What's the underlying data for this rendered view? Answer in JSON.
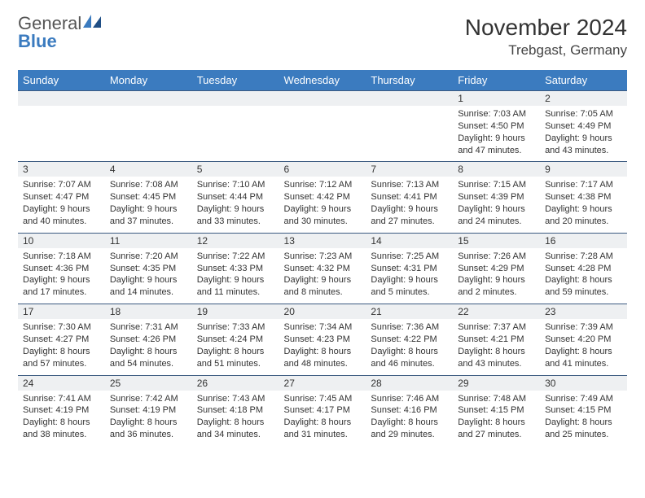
{
  "brand": {
    "name1": "General",
    "name2": "Blue"
  },
  "title": "November 2024",
  "location": "Trebgast, Germany",
  "colors": {
    "header_bg": "#3b7bbf",
    "header_text": "#ffffff",
    "daynum_bg": "#eef0f2",
    "border": "#3b5a80",
    "body_text": "#333333",
    "brand_gray": "#555555",
    "brand_blue": "#3b7bbf"
  },
  "fonts": {
    "title_size": 28,
    "location_size": 17,
    "header_size": 13,
    "daynum_size": 12,
    "cell_size": 11
  },
  "daysOfWeek": [
    "Sunday",
    "Monday",
    "Tuesday",
    "Wednesday",
    "Thursday",
    "Friday",
    "Saturday"
  ],
  "weeks": [
    [
      null,
      null,
      null,
      null,
      null,
      {
        "n": "1",
        "sunrise": "7:03 AM",
        "sunset": "4:50 PM",
        "daylight": "9 hours and 47 minutes."
      },
      {
        "n": "2",
        "sunrise": "7:05 AM",
        "sunset": "4:49 PM",
        "daylight": "9 hours and 43 minutes."
      }
    ],
    [
      {
        "n": "3",
        "sunrise": "7:07 AM",
        "sunset": "4:47 PM",
        "daylight": "9 hours and 40 minutes."
      },
      {
        "n": "4",
        "sunrise": "7:08 AM",
        "sunset": "4:45 PM",
        "daylight": "9 hours and 37 minutes."
      },
      {
        "n": "5",
        "sunrise": "7:10 AM",
        "sunset": "4:44 PM",
        "daylight": "9 hours and 33 minutes."
      },
      {
        "n": "6",
        "sunrise": "7:12 AM",
        "sunset": "4:42 PM",
        "daylight": "9 hours and 30 minutes."
      },
      {
        "n": "7",
        "sunrise": "7:13 AM",
        "sunset": "4:41 PM",
        "daylight": "9 hours and 27 minutes."
      },
      {
        "n": "8",
        "sunrise": "7:15 AM",
        "sunset": "4:39 PM",
        "daylight": "9 hours and 24 minutes."
      },
      {
        "n": "9",
        "sunrise": "7:17 AM",
        "sunset": "4:38 PM",
        "daylight": "9 hours and 20 minutes."
      }
    ],
    [
      {
        "n": "10",
        "sunrise": "7:18 AM",
        "sunset": "4:36 PM",
        "daylight": "9 hours and 17 minutes."
      },
      {
        "n": "11",
        "sunrise": "7:20 AM",
        "sunset": "4:35 PM",
        "daylight": "9 hours and 14 minutes."
      },
      {
        "n": "12",
        "sunrise": "7:22 AM",
        "sunset": "4:33 PM",
        "daylight": "9 hours and 11 minutes."
      },
      {
        "n": "13",
        "sunrise": "7:23 AM",
        "sunset": "4:32 PM",
        "daylight": "9 hours and 8 minutes."
      },
      {
        "n": "14",
        "sunrise": "7:25 AM",
        "sunset": "4:31 PM",
        "daylight": "9 hours and 5 minutes."
      },
      {
        "n": "15",
        "sunrise": "7:26 AM",
        "sunset": "4:29 PM",
        "daylight": "9 hours and 2 minutes."
      },
      {
        "n": "16",
        "sunrise": "7:28 AM",
        "sunset": "4:28 PM",
        "daylight": "8 hours and 59 minutes."
      }
    ],
    [
      {
        "n": "17",
        "sunrise": "7:30 AM",
        "sunset": "4:27 PM",
        "daylight": "8 hours and 57 minutes."
      },
      {
        "n": "18",
        "sunrise": "7:31 AM",
        "sunset": "4:26 PM",
        "daylight": "8 hours and 54 minutes."
      },
      {
        "n": "19",
        "sunrise": "7:33 AM",
        "sunset": "4:24 PM",
        "daylight": "8 hours and 51 minutes."
      },
      {
        "n": "20",
        "sunrise": "7:34 AM",
        "sunset": "4:23 PM",
        "daylight": "8 hours and 48 minutes."
      },
      {
        "n": "21",
        "sunrise": "7:36 AM",
        "sunset": "4:22 PM",
        "daylight": "8 hours and 46 minutes."
      },
      {
        "n": "22",
        "sunrise": "7:37 AM",
        "sunset": "4:21 PM",
        "daylight": "8 hours and 43 minutes."
      },
      {
        "n": "23",
        "sunrise": "7:39 AM",
        "sunset": "4:20 PM",
        "daylight": "8 hours and 41 minutes."
      }
    ],
    [
      {
        "n": "24",
        "sunrise": "7:41 AM",
        "sunset": "4:19 PM",
        "daylight": "8 hours and 38 minutes."
      },
      {
        "n": "25",
        "sunrise": "7:42 AM",
        "sunset": "4:19 PM",
        "daylight": "8 hours and 36 minutes."
      },
      {
        "n": "26",
        "sunrise": "7:43 AM",
        "sunset": "4:18 PM",
        "daylight": "8 hours and 34 minutes."
      },
      {
        "n": "27",
        "sunrise": "7:45 AM",
        "sunset": "4:17 PM",
        "daylight": "8 hours and 31 minutes."
      },
      {
        "n": "28",
        "sunrise": "7:46 AM",
        "sunset": "4:16 PM",
        "daylight": "8 hours and 29 minutes."
      },
      {
        "n": "29",
        "sunrise": "7:48 AM",
        "sunset": "4:15 PM",
        "daylight": "8 hours and 27 minutes."
      },
      {
        "n": "30",
        "sunrise": "7:49 AM",
        "sunset": "4:15 PM",
        "daylight": "8 hours and 25 minutes."
      }
    ]
  ],
  "labels": {
    "sunrise": "Sunrise: ",
    "sunset": "Sunset: ",
    "daylight": "Daylight: "
  }
}
